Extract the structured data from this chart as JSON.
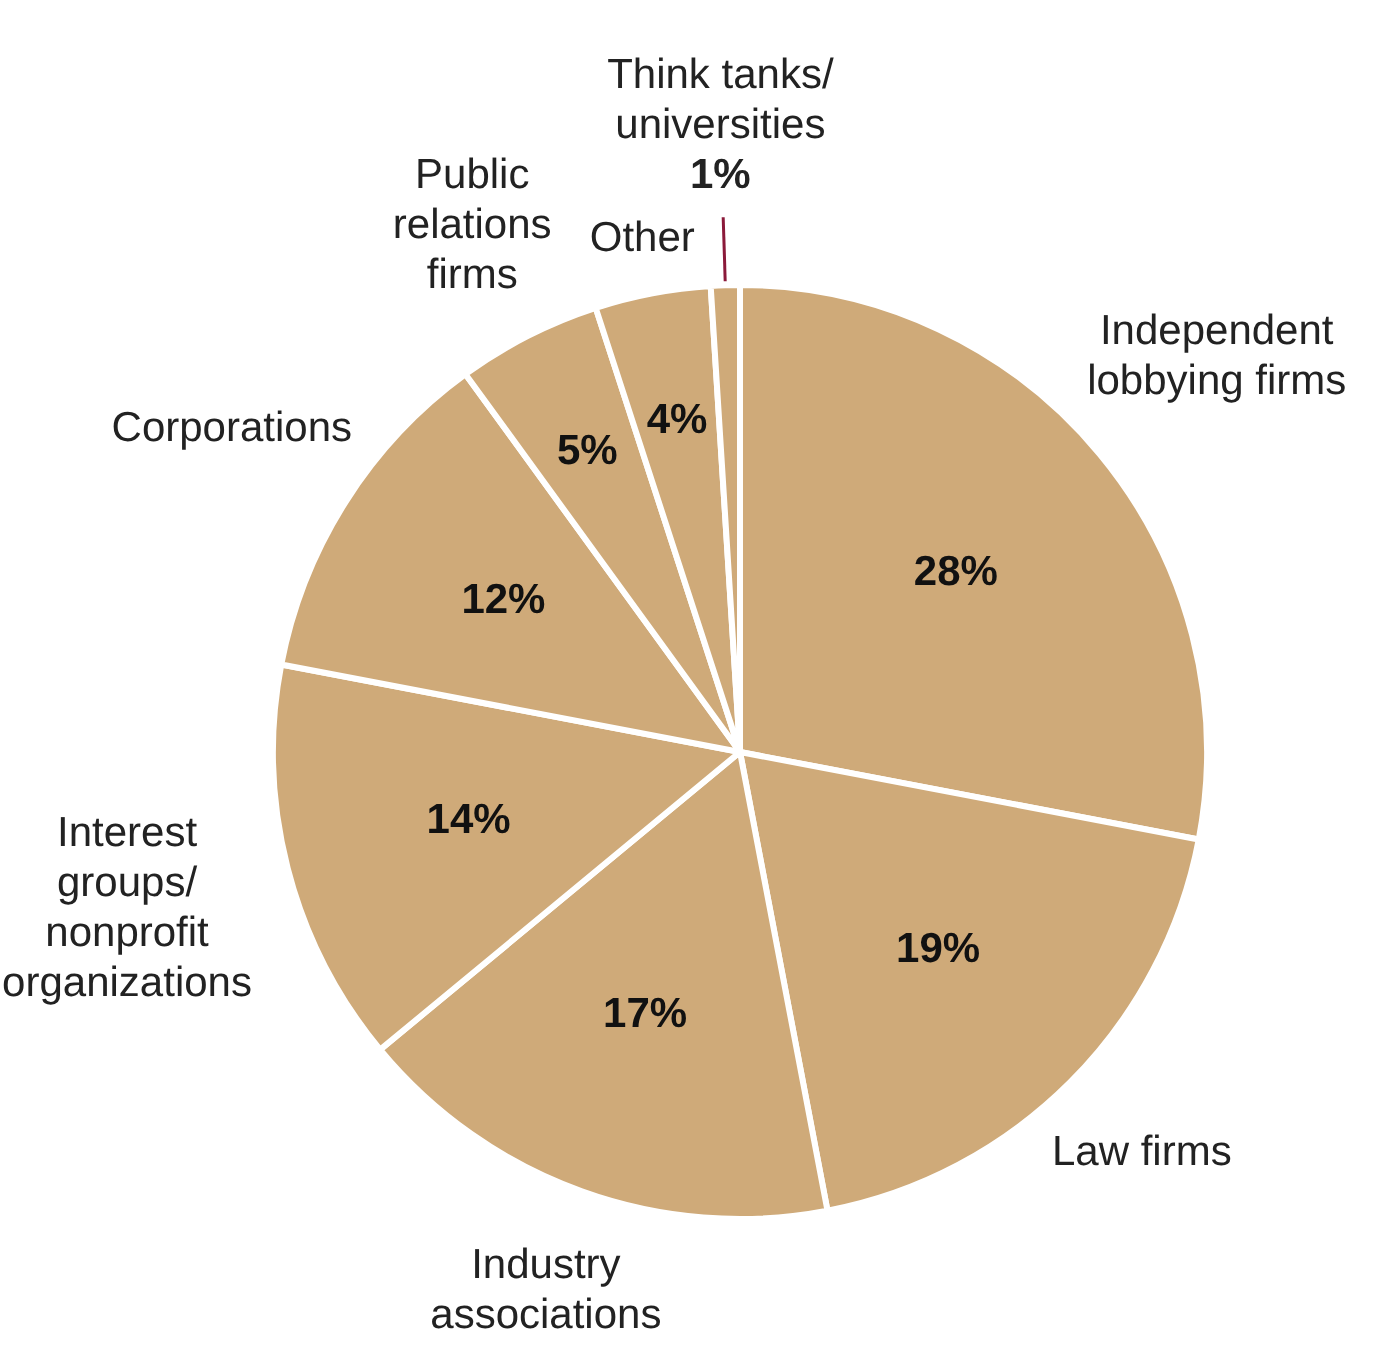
{
  "chart_data": {
    "type": "pie",
    "categories": [
      "Independent\nlobbying firms",
      "Law firms",
      "Industry\nassociations",
      "Interest\ngroups/\nnonprofit\norganizations",
      "Corporations",
      "Public\nrelations\nfirms",
      "Other",
      "Think tanks/\nuniversities"
    ],
    "values": [
      28,
      19,
      17,
      14,
      12,
      5,
      4,
      1
    ],
    "value_labels": [
      "28%",
      "19%",
      "17%",
      "14%",
      "12%",
      "5%",
      "4%",
      "1%"
    ],
    "colors": [
      "#cfaa79",
      "#cfaa79",
      "#cfaa79",
      "#cfaa79",
      "#cfaa79",
      "#cfaa79",
      "#cfaa79",
      "#cfaa79"
    ],
    "legend": false
  }
}
